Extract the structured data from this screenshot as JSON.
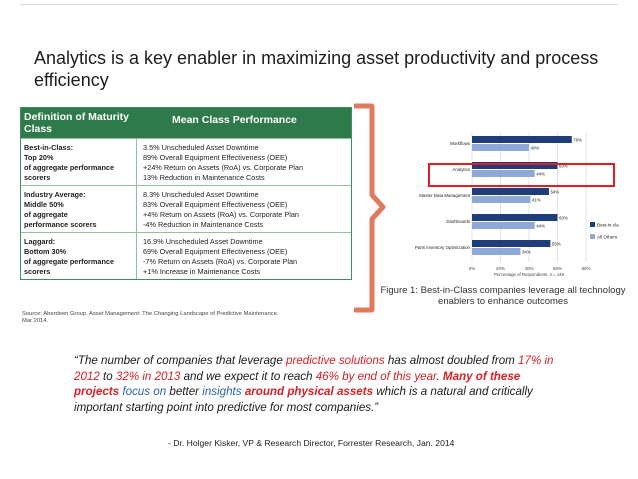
{
  "slide": {
    "title": "Analytics is a key enabler in maximizing asset productivity and process efficiency"
  },
  "table": {
    "headers": [
      "Definition of Maturity Class",
      "Mean Class Performance"
    ],
    "rows": [
      {
        "class_lines": [
          "Best-in-Class:",
          "Top 20%",
          "of aggregate performance",
          "scorers"
        ],
        "metrics": [
          "3.5% Unscheduled Asset Downtime",
          "89% Overall Equipment Effectiveness (OEE)",
          "+24% Return on Assets (RoA) vs. Corporate Plan",
          "13% Reduction in Maintenance Costs"
        ]
      },
      {
        "class_lines": [
          "Industry Average:",
          "Middle 50%",
          "of aggregate",
          "performance scorers"
        ],
        "metrics": [
          "8.3% Unscheduled Asset Downtime",
          "83% Overall Equipment Effectiveness (OEE)",
          "+4% Return on Assets (RoA) vs. Corporate Plan",
          "-4% Reduction in Maintenance Costs"
        ]
      },
      {
        "class_lines": [
          "Laggard:",
          "Bottom 30%",
          "of aggregate performance",
          "scorers"
        ],
        "metrics": [
          "16.9% Unscheduled Asset Downtime",
          "69% Overall Equipment Effectiveness (OEE)",
          "-7% Return on Assets (RoA) vs. Corporate Plan",
          "+1% Increase in Maintenance Costs"
        ]
      }
    ],
    "source": "Source: Aberdeen Group. Asset Management: The Changing Landscape of Predictive Maintenance. Mar 2014."
  },
  "chart_data": {
    "type": "bar",
    "orientation": "horizontal",
    "categories": [
      "Workflows",
      "Analytics",
      "Master Data Management",
      "Dashboards",
      "Spare Parts Inventory Optimization"
    ],
    "series": [
      {
        "name": "Best-in-class",
        "color": "#1f3d7a",
        "values": [
          70,
          60,
          54,
          60,
          55
        ]
      },
      {
        "name": "All Others",
        "color": "#8fa9d6",
        "values": [
          40,
          44,
          41,
          44,
          34
        ]
      }
    ],
    "value_labels": [
      [
        "70%",
        "40%"
      ],
      [
        "60%",
        "44%"
      ],
      [
        "54%",
        "41%"
      ],
      [
        "60%",
        "44%"
      ],
      [
        "55%",
        "34%"
      ]
    ],
    "xlim": [
      0,
      80
    ],
    "xticks": [
      "0%",
      "20%",
      "40%",
      "60%",
      "80%"
    ],
    "xlabel": "Percentage of Respondents, n = 149",
    "legend_position": "right",
    "highlight_category": "Analytics",
    "highlight_color": "#e01e24"
  },
  "caption": "Figure 1: Best-in-Class companies leverage all technology enablers to enhance outcomes",
  "quote": {
    "t1": "“The number of companies that leverage ",
    "t2": "predictive solutions",
    "t3": " has almost doubled from ",
    "t4": "17% in 2012",
    "t5": " to ",
    "t6": "32% in 2013",
    "t7": " and we expect it to reach ",
    "t8": "46% by end of this year",
    "t9": ". ",
    "t10": "Many of these projects",
    "t11": " ",
    "t12": "focus on",
    "t13": " better ",
    "t14": "insights",
    "t15": " ",
    "t16": "around physical assets",
    "t17": " which is a natural and critically important starting point into predictive for most companies.”"
  },
  "attribution": "- Dr. Holger Kisker, VP & Research Director, Forrester Research, Jan. 2014",
  "colors": {
    "table_header": "#2f7a4a",
    "bracket": "#e07a5f",
    "accent_red": "#d72027",
    "accent_blue": "#2a63b0"
  }
}
